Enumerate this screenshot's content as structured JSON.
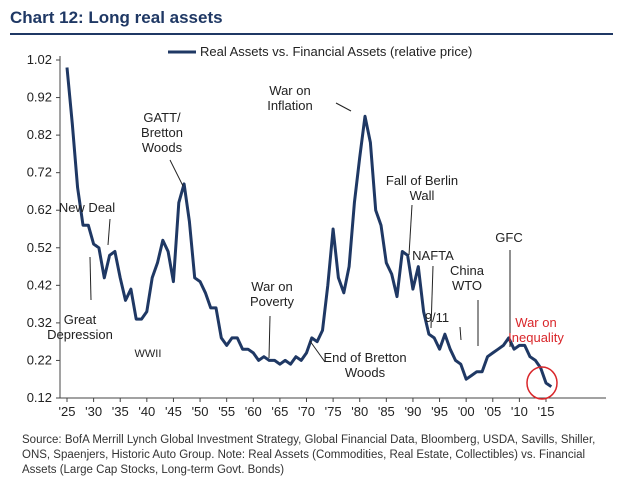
{
  "title": "Chart 12: Long real assets",
  "source": "Source:  BofA Merrill Lynch Global Investment Strategy, Global Financial Data, Bloomberg, USDA, Savills, Shiller, ONS, Spaenjers, Historic Auto Group. Note: Real Assets (Commodities, Real Estate, Collectibles) vs. Financial Assets (Large Cap Stocks, Long-term Govt. Bonds)",
  "colors": {
    "series": "#1f3864",
    "highlight": "#d9262a",
    "title": "#1f3864"
  },
  "chart_data": {
    "type": "line",
    "title": "",
    "xlabel": "",
    "ylabel": "",
    "xlim": [
      1925,
      2017
    ],
    "ylim": [
      0.12,
      1.02
    ],
    "yticks": [
      "0.12",
      "0.22",
      "0.32",
      "0.42",
      "0.52",
      "0.62",
      "0.72",
      "0.82",
      "0.92",
      "1.02"
    ],
    "yticks_num": [
      0.12,
      0.22,
      0.32,
      0.42,
      0.52,
      0.62,
      0.72,
      0.82,
      0.92,
      1.02
    ],
    "xticks": [
      "'25",
      "'30",
      "'35",
      "'40",
      "'45",
      "'50",
      "'55",
      "'60",
      "'65",
      "'70",
      "'75",
      "'80",
      "'85",
      "'90",
      "'95",
      "'00",
      "'05",
      "'10",
      "'15"
    ],
    "xticks_num": [
      1925,
      1930,
      1935,
      1940,
      1945,
      1950,
      1955,
      1960,
      1965,
      1970,
      1975,
      1980,
      1985,
      1990,
      1995,
      2000,
      2005,
      2010,
      2015
    ],
    "grid": false,
    "legend": "top",
    "series": [
      {
        "name": "Real Assets vs. Financial Assets (relative price)",
        "x": [
          1925,
          1926,
          1927,
          1928,
          1929,
          1930,
          1931,
          1932,
          1933,
          1934,
          1935,
          1936,
          1937,
          1938,
          1939,
          1940,
          1941,
          1942,
          1943,
          1944,
          1945,
          1946,
          1947,
          1948,
          1949,
          1950,
          1951,
          1952,
          1953,
          1954,
          1955,
          1956,
          1957,
          1958,
          1959,
          1960,
          1961,
          1962,
          1963,
          1964,
          1965,
          1966,
          1967,
          1968,
          1969,
          1970,
          1971,
          1972,
          1973,
          1974,
          1975,
          1976,
          1977,
          1978,
          1979,
          1980,
          1981,
          1982,
          1983,
          1984,
          1985,
          1986,
          1987,
          1988,
          1989,
          1990,
          1991,
          1992,
          1993,
          1994,
          1995,
          1996,
          1997,
          1998,
          1999,
          2000,
          2001,
          2002,
          2003,
          2004,
          2005,
          2006,
          2007,
          2008,
          2009,
          2010,
          2011,
          2012,
          2013,
          2014,
          2015,
          2016
        ],
        "values": [
          1.0,
          0.85,
          0.68,
          0.58,
          0.58,
          0.53,
          0.52,
          0.44,
          0.5,
          0.51,
          0.44,
          0.38,
          0.41,
          0.33,
          0.33,
          0.35,
          0.44,
          0.48,
          0.54,
          0.51,
          0.43,
          0.64,
          0.69,
          0.59,
          0.44,
          0.43,
          0.4,
          0.36,
          0.36,
          0.28,
          0.26,
          0.28,
          0.28,
          0.25,
          0.25,
          0.24,
          0.22,
          0.23,
          0.22,
          0.22,
          0.21,
          0.22,
          0.21,
          0.23,
          0.22,
          0.24,
          0.28,
          0.27,
          0.3,
          0.42,
          0.57,
          0.44,
          0.4,
          0.47,
          0.64,
          0.76,
          0.87,
          0.8,
          0.62,
          0.58,
          0.48,
          0.45,
          0.39,
          0.51,
          0.5,
          0.41,
          0.47,
          0.35,
          0.29,
          0.28,
          0.25,
          0.29,
          0.25,
          0.22,
          0.21,
          0.17,
          0.18,
          0.19,
          0.19,
          0.23,
          0.24,
          0.25,
          0.26,
          0.28,
          0.25,
          0.26,
          0.26,
          0.23,
          0.22,
          0.2,
          0.16,
          0.15
        ]
      }
    ],
    "annotations": [
      {
        "text": "New Deal",
        "at": 1933
      },
      {
        "text": "Great\nDepression",
        "at": 1929
      },
      {
        "text": "WWII",
        "at": 1941
      },
      {
        "text": "GATT/\nBretton\nWoods",
        "at": 1947
      },
      {
        "text": "War on\nPoverty",
        "at": 1964
      },
      {
        "text": "End of Bretton\nWoods",
        "at": 1971
      },
      {
        "text": "War on\nInflation",
        "at": 1980
      },
      {
        "text": "Fall of Berlin\nWall",
        "at": 1989
      },
      {
        "text": "NAFTA",
        "at": 1994
      },
      {
        "text": "9/11",
        "at": 2001
      },
      {
        "text": "China\nWTO",
        "at": 2001
      },
      {
        "text": "GFC",
        "at": 2008
      },
      {
        "text": "War on\nInequality",
        "at": 2015,
        "highlight": true
      }
    ]
  }
}
